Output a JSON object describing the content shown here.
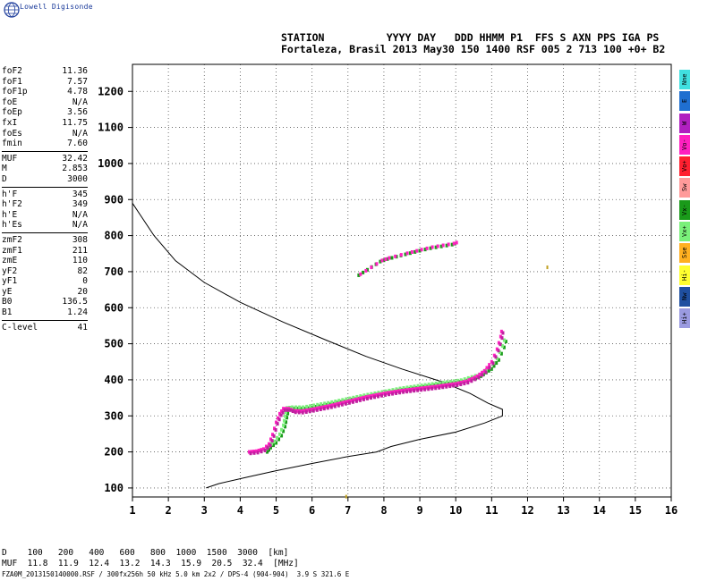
{
  "brand": "Lowell Digisonde",
  "header": {
    "line1": "STATION          YYYY DAY   DDD HHMM P1  FFS S AXN PPS IGA PS",
    "line2": "Fortaleza, Brasil 2013 May30 150 1400 RSF 005 2 713 100 +0+ B2"
  },
  "params": [
    {
      "k": "foF2",
      "v": "11.36"
    },
    {
      "k": "foF1",
      "v": "7.57"
    },
    {
      "k": "foF1p",
      "v": "4.78"
    },
    {
      "k": "foE",
      "v": "N/A"
    },
    {
      "k": "foEp",
      "v": "3.56"
    },
    {
      "k": "fxI",
      "v": "11.75"
    },
    {
      "k": "foEs",
      "v": "N/A"
    },
    {
      "k": "fmin",
      "v": "7.60"
    },
    {
      "sep": true
    },
    {
      "k": "MUF",
      "v": "32.42"
    },
    {
      "k": "M",
      "v": "2.853"
    },
    {
      "k": "D",
      "v": "3000"
    },
    {
      "sep": true
    },
    {
      "k": "h'F",
      "v": "345"
    },
    {
      "k": "h'F2",
      "v": "349"
    },
    {
      "k": "h'E",
      "v": "N/A"
    },
    {
      "k": "h'Es",
      "v": "N/A"
    },
    {
      "sep": true
    },
    {
      "k": "zmF2",
      "v": "308"
    },
    {
      "k": "zmF1",
      "v": "211"
    },
    {
      "k": "zmE",
      "v": "110"
    },
    {
      "k": "yF2",
      "v": "82"
    },
    {
      "k": "yF1",
      "v": "0"
    },
    {
      "k": "yE",
      "v": "20"
    },
    {
      "k": "B0",
      "v": "136.5"
    },
    {
      "k": "B1",
      "v": "1.24"
    },
    {
      "sep": true
    },
    {
      "k": "C-level",
      "v": "41"
    }
  ],
  "legend": [
    {
      "label": "Nne",
      "color": "#40e0e0"
    },
    {
      "label": "E",
      "color": "#1f6fd0"
    },
    {
      "label": "W",
      "color": "#b020c0"
    },
    {
      "label": "Vo-",
      "color": "#ff20c0"
    },
    {
      "label": "Vo+",
      "color": "#ff2030"
    },
    {
      "label": "Sw",
      "color": "#ff9a9a"
    },
    {
      "label": "Vx-",
      "color": "#1a9a1a"
    },
    {
      "label": "Vx+",
      "color": "#7af07a"
    },
    {
      "label": "Sse",
      "color": "#ffb020"
    },
    {
      "label": "Hi-",
      "color": "#ffff30"
    },
    {
      "label": "Nw",
      "color": "#1f4fa0"
    },
    {
      "label": "Hi+",
      "color": "#9a9ae0"
    }
  ],
  "muf_table": {
    "head": "D    100   200   400   600   800  1000  1500  3000  [km]",
    "vals": "MUF  11.8  11.9  12.4  13.2  14.3  15.9  20.5  32.4  [MHz]"
  },
  "footer": "FZA0M_2013150140000.RSF / 300fx256h 50 kHz 5.0 km 2x2 / DPS-4 (904-904)  3.9 S 321.6 E",
  "chart_data": {
    "type": "scatter",
    "x_ticks": [
      1,
      2,
      3,
      4,
      5,
      6,
      7,
      8,
      9,
      10,
      11,
      12,
      13,
      14,
      15,
      16
    ],
    "y_ticks": [
      100,
      200,
      300,
      400,
      500,
      600,
      700,
      800,
      900,
      1000,
      1100,
      1200
    ],
    "xlim": [
      1,
      16
    ],
    "ylim": [
      75,
      1275
    ],
    "grid": true,
    "profile": [
      [
        3.05,
        100
      ],
      [
        3.4,
        112
      ],
      [
        4.2,
        130
      ],
      [
        5.0,
        148
      ],
      [
        6.0,
        168
      ],
      [
        7.0,
        187
      ],
      [
        7.8,
        200
      ],
      [
        8.2,
        215
      ],
      [
        9.0,
        235
      ],
      [
        10.0,
        255
      ],
      [
        10.8,
        280
      ],
      [
        11.3,
        300
      ],
      [
        11.3,
        318
      ],
      [
        10.9,
        335
      ],
      [
        10.4,
        362
      ],
      [
        9.6,
        395
      ],
      [
        8.5,
        430
      ],
      [
        7.5,
        465
      ],
      [
        6.4,
        510
      ],
      [
        5.2,
        560
      ],
      [
        4.0,
        615
      ],
      [
        3.0,
        670
      ],
      [
        2.2,
        730
      ],
      [
        1.6,
        800
      ],
      [
        1.2,
        860
      ],
      [
        1.0,
        890
      ]
    ],
    "o_trace": [
      [
        4.25,
        200
      ],
      [
        4.45,
        202
      ],
      [
        4.65,
        208
      ],
      [
        4.8,
        222
      ],
      [
        4.9,
        248
      ],
      [
        5.0,
        282
      ],
      [
        5.1,
        306
      ],
      [
        5.2,
        320
      ],
      [
        5.35,
        320
      ],
      [
        5.5,
        314
      ],
      [
        5.7,
        313
      ],
      [
        6.0,
        318
      ],
      [
        6.5,
        328
      ],
      [
        7.0,
        340
      ],
      [
        7.5,
        352
      ],
      [
        8.0,
        362
      ],
      [
        8.5,
        370
      ],
      [
        9.0,
        376
      ],
      [
        9.5,
        382
      ],
      [
        10.0,
        389
      ],
      [
        10.3,
        396
      ],
      [
        10.6,
        410
      ],
      [
        10.8,
        425
      ],
      [
        11.0,
        450
      ],
      [
        11.15,
        485
      ],
      [
        11.25,
        520
      ],
      [
        11.3,
        548
      ]
    ],
    "x_trace": [
      [
        4.75,
        200
      ],
      [
        4.85,
        212
      ],
      [
        5.0,
        225
      ],
      [
        5.15,
        245
      ],
      [
        5.25,
        270
      ],
      [
        5.3,
        295
      ],
      [
        5.35,
        318
      ],
      [
        5.5,
        320
      ],
      [
        5.8,
        320
      ],
      [
        6.5,
        332
      ],
      [
        7.5,
        353
      ],
      [
        8.5,
        372
      ],
      [
        9.5,
        386
      ],
      [
        10.2,
        395
      ],
      [
        10.7,
        410
      ],
      [
        11.0,
        430
      ],
      [
        11.2,
        455
      ],
      [
        11.35,
        490
      ],
      [
        11.45,
        522
      ]
    ],
    "es_trace": [
      [
        7.3,
        690
      ],
      [
        7.9,
        728
      ],
      [
        8.1,
        735
      ],
      [
        8.6,
        748
      ],
      [
        9.0,
        758
      ],
      [
        9.3,
        765
      ],
      [
        9.6,
        770
      ],
      [
        9.9,
        775
      ],
      [
        10.05,
        780
      ]
    ],
    "stray": [
      [
        12.55,
        712
      ],
      [
        6.95,
        76
      ]
    ]
  }
}
